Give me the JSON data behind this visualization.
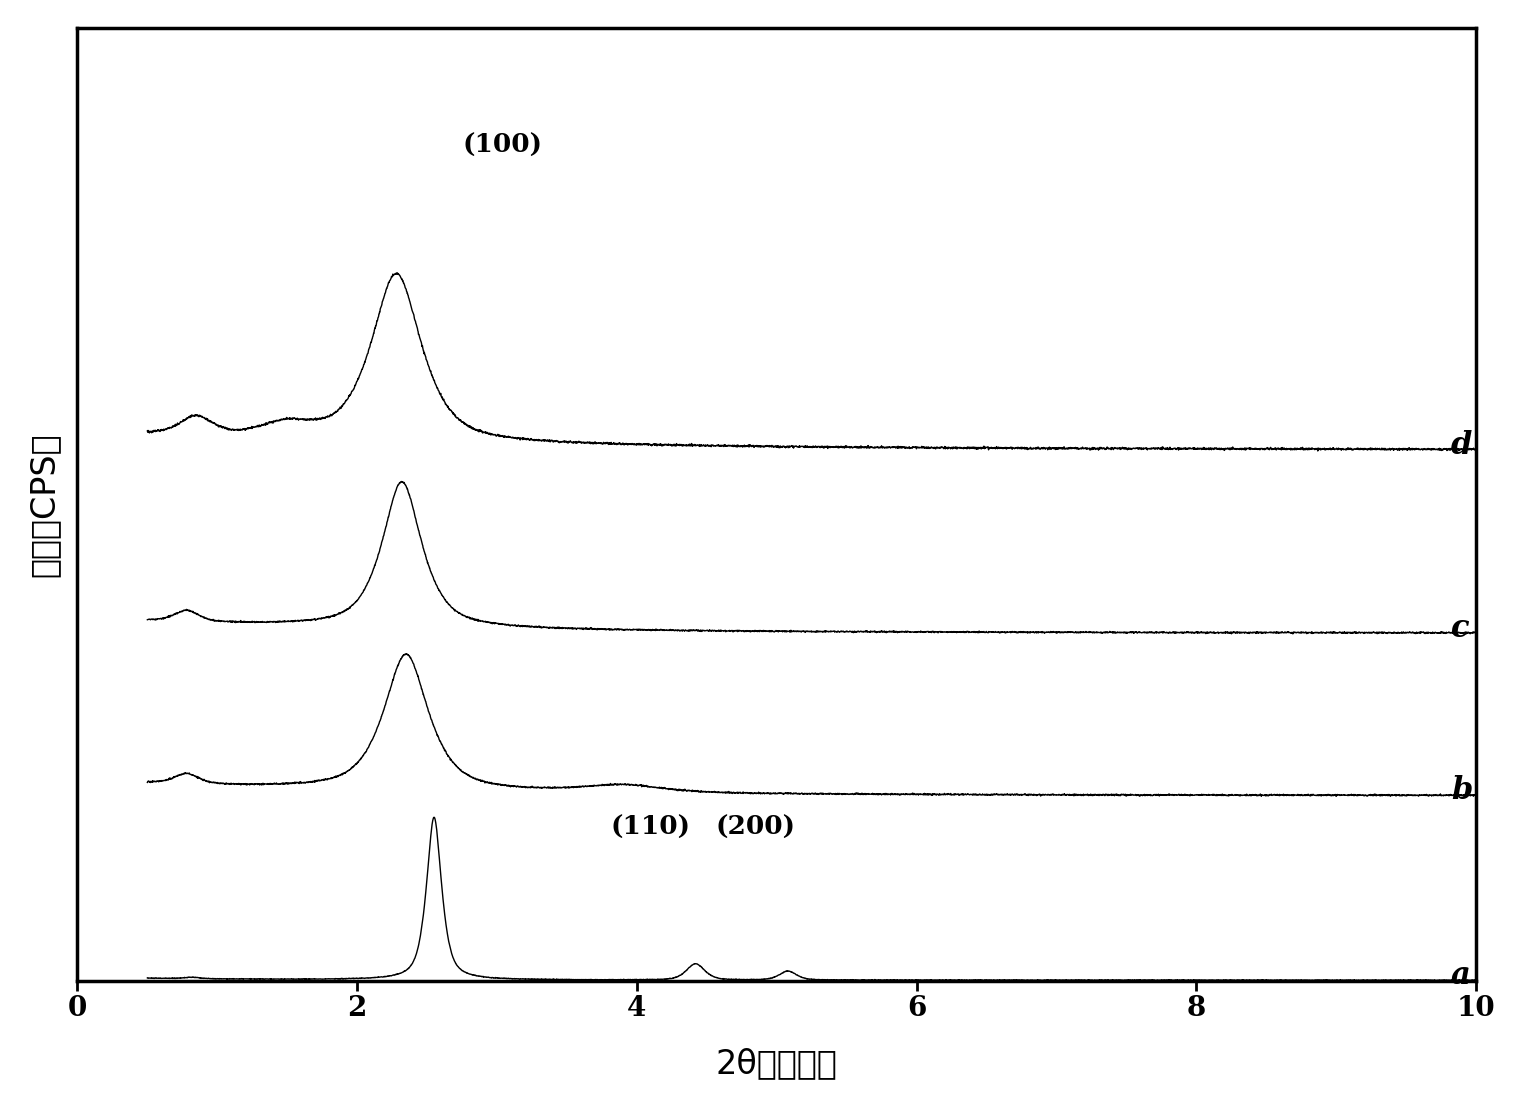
{
  "xlabel": "2θ角（度）",
  "ylabel": "强度（CPS）",
  "xlim": [
    0.5,
    10
  ],
  "xticklabels": [
    "0",
    "2",
    "4",
    "6",
    "8",
    "10"
  ],
  "xticks": [
    0,
    2,
    4,
    6,
    8,
    10
  ],
  "annotation_100": "(100)",
  "annotation_110": "(110)",
  "annotation_200": "(200)",
  "labels": [
    "a",
    "b",
    "c",
    "d"
  ],
  "line_color": "#000000",
  "background_color": "#ffffff",
  "fig_width": 15.23,
  "fig_height": 11.08
}
